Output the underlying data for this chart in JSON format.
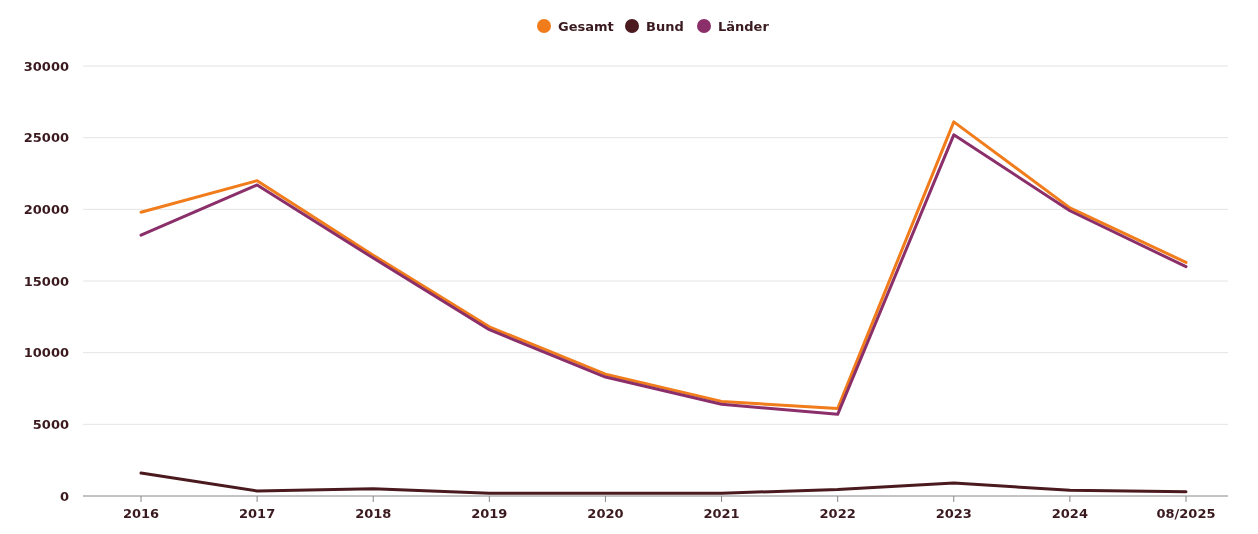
{
  "chart_data": {
    "type": "line",
    "categories": [
      "2016",
      "2017",
      "2018",
      "2019",
      "2020",
      "2021",
      "2022",
      "2023",
      "2024",
      "08/2025"
    ],
    "series": [
      {
        "name": "Gesamt",
        "color": "#f07c1b",
        "values": [
          19800,
          22000,
          16800,
          11800,
          8500,
          6600,
          6100,
          26100,
          20100,
          16300
        ]
      },
      {
        "name": "Bund",
        "color": "#4a1a1f",
        "values": [
          1600,
          350,
          500,
          200,
          200,
          200,
          450,
          900,
          400,
          300
        ]
      },
      {
        "name": "Länder",
        "color": "#8b2f6b",
        "values": [
          18200,
          21700,
          16600,
          11600,
          8300,
          6400,
          5700,
          25200,
          19900,
          16000
        ]
      }
    ],
    "ylim": [
      0,
      30000
    ],
    "yticks": [
      0,
      5000,
      10000,
      15000,
      20000,
      25000,
      30000
    ],
    "grid": "y",
    "legend": "top",
    "marker": "none",
    "line_style": "solid"
  }
}
